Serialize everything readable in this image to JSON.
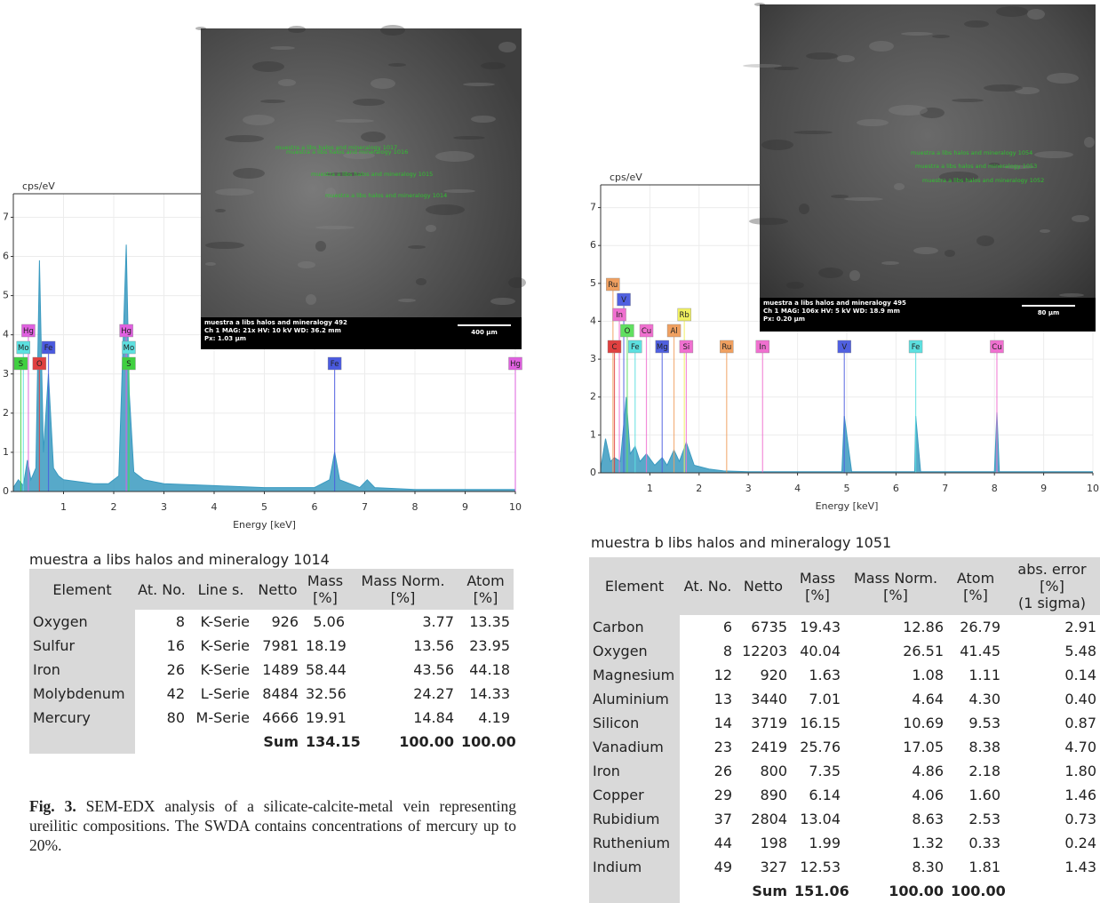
{
  "chart_data": [
    {
      "type": "line",
      "y_label": "cps/eV",
      "x_label": "Energy [keV]",
      "color": "#3a9ac0",
      "grid": true,
      "xlim": [
        0,
        10
      ],
      "ylim": [
        0,
        7.6
      ],
      "xticks": [
        1,
        2,
        3,
        4,
        5,
        6,
        7,
        8,
        9,
        10
      ],
      "yticks": [
        0,
        1,
        2,
        3,
        4,
        5,
        6,
        7
      ],
      "x": [
        0,
        0.1,
        0.2,
        0.28,
        0.35,
        0.45,
        0.52,
        0.6,
        0.7,
        0.8,
        0.9,
        1.0,
        1.3,
        1.6,
        1.9,
        2.1,
        2.25,
        2.31,
        2.4,
        2.6,
        3.0,
        4.0,
        5.0,
        6.0,
        6.3,
        6.4,
        6.5,
        6.9,
        7.05,
        7.2,
        8.0,
        9.0,
        10.0
      ],
      "values": [
        0.1,
        0.3,
        0.15,
        0.8,
        0.3,
        0.6,
        5.9,
        1.0,
        3.0,
        0.6,
        0.4,
        0.3,
        0.25,
        0.2,
        0.2,
        0.4,
        6.3,
        2.5,
        0.5,
        0.3,
        0.2,
        0.15,
        0.1,
        0.1,
        0.3,
        1.0,
        0.3,
        0.1,
        0.3,
        0.1,
        0.05,
        0.05,
        0.05
      ],
      "marker_rows": [
        [
          {
            "label": "Hg",
            "energy": 0.3,
            "color": "#e060e0"
          },
          {
            "label": "Hg",
            "energy": 2.25,
            "color": "#e060e0"
          }
        ],
        [
          {
            "label": "Mo",
            "energy": 0.2,
            "color": "#5ce0e0"
          },
          {
            "label": "Fe",
            "energy": 0.7,
            "color": "#4a5ae0"
          },
          {
            "label": "Mo",
            "energy": 2.3,
            "color": "#5ce0e0"
          }
        ],
        [
          {
            "label": "S",
            "energy": 0.15,
            "color": "#40d040"
          },
          {
            "label": "O",
            "energy": 0.52,
            "color": "#e04040"
          },
          {
            "label": "S",
            "energy": 2.3,
            "color": "#40d040"
          },
          {
            "label": "Fe",
            "energy": 6.4,
            "color": "#4a5ae0"
          },
          {
            "label": "Hg",
            "energy": 10.0,
            "color": "#e060e0"
          }
        ]
      ]
    },
    {
      "type": "line",
      "y_label": "cps/eV",
      "x_label": "Energy [keV]",
      "color": "#3a9ac0",
      "grid": true,
      "xlim": [
        0,
        10
      ],
      "ylim": [
        0,
        7.6
      ],
      "xticks": [
        1,
        2,
        3,
        4,
        5,
        6,
        7,
        8,
        9,
        10
      ],
      "yticks": [
        0,
        1,
        2,
        3,
        4,
        5,
        6,
        7
      ],
      "x": [
        0,
        0.1,
        0.2,
        0.28,
        0.4,
        0.52,
        0.6,
        0.7,
        0.8,
        0.93,
        1.1,
        1.25,
        1.35,
        1.49,
        1.6,
        1.74,
        1.9,
        2.2,
        2.5,
        3.0,
        4.0,
        4.9,
        4.95,
        5.1,
        6.0,
        6.38,
        6.4,
        6.5,
        8.0,
        8.05,
        8.1,
        10.0
      ],
      "values": [
        0.1,
        0.9,
        0.3,
        0.4,
        0.3,
        2.0,
        0.5,
        0.7,
        0.3,
        0.5,
        0.2,
        0.4,
        0.2,
        0.6,
        0.3,
        0.8,
        0.2,
        0.1,
        0.05,
        0.03,
        0.03,
        0.03,
        1.5,
        0.03,
        0.03,
        0.03,
        1.5,
        0.03,
        0.03,
        1.6,
        0.03,
        0.03
      ],
      "marker_rows": [
        [
          {
            "label": "Ru",
            "energy": 0.25,
            "color": "#f0a060"
          }
        ],
        [
          {
            "label": "V",
            "energy": 0.47,
            "color": "#5060e0"
          }
        ],
        [
          {
            "label": "In",
            "energy": 0.38,
            "color": "#f070d0"
          },
          {
            "label": "Rb",
            "energy": 1.7,
            "color": "#f0f060"
          }
        ],
        [
          {
            "label": "O",
            "energy": 0.54,
            "color": "#60e060"
          },
          {
            "label": "Cu",
            "energy": 0.93,
            "color": "#f070d0"
          },
          {
            "label": "Al",
            "energy": 1.49,
            "color": "#f0a060"
          }
        ],
        [
          {
            "label": "C",
            "energy": 0.28,
            "color": "#e04040"
          },
          {
            "label": "Fe",
            "energy": 0.7,
            "color": "#5ce0e0"
          },
          {
            "label": "Mg",
            "energy": 1.25,
            "color": "#5060e0"
          },
          {
            "label": "Si",
            "energy": 1.74,
            "color": "#f070d0"
          },
          {
            "label": "Ru",
            "energy": 2.56,
            "color": "#f0a060"
          },
          {
            "label": "In",
            "energy": 3.29,
            "color": "#f070d0"
          },
          {
            "label": "V",
            "energy": 4.95,
            "color": "#5060e0"
          },
          {
            "label": "Fe",
            "energy": 6.4,
            "color": "#5ce0e0"
          },
          {
            "label": "Cu",
            "energy": 8.05,
            "color": "#f070d0"
          }
        ]
      ]
    }
  ],
  "sem_images": [
    {
      "title": "muestra a libs halos and mineralogy 492",
      "params": "Ch 1   MAG: 21x   HV: 10 kV   WD: 36.2 mm",
      "pixel": "Px: 1.03 µm",
      "scale": "400 µm",
      "labels": [
        "muestra a libs halos and mineralogy 1017",
        "muestra a libs halos and mineralogy 1016",
        "muestra a libs halos and mineralogy 1015",
        "muestra a libs halos and mineralogy 1014"
      ]
    },
    {
      "title": "muestra a libs halos and mineralogy 495",
      "params": "Ch 1   MAG: 106x   HV: 5 kV   WD: 18.9 mm",
      "pixel": "Px: 0.20 µm",
      "scale": "80 µm",
      "labels": [
        "muestra a libs halos and mineralogy 1054",
        "muestra a libs halos and mineralogy 1053",
        "muestra a libs halos and mineralogy 1052"
      ]
    }
  ],
  "tables": [
    {
      "title": "muestra a libs halos and mineralogy 1014",
      "columns": [
        [
          "Element"
        ],
        [
          "At. No."
        ],
        [
          "Line s."
        ],
        [
          "Netto"
        ],
        [
          "Mass",
          "[%]"
        ],
        [
          "Mass Norm.",
          "[%]"
        ],
        [
          "Atom",
          "[%]"
        ]
      ],
      "rows": [
        [
          "Oxygen",
          "8",
          "K-Serie",
          "926",
          "5.06",
          "3.77",
          "13.35"
        ],
        [
          "Sulfur",
          "16",
          "K-Serie",
          "7981",
          "18.19",
          "13.56",
          "23.95"
        ],
        [
          "Iron",
          "26",
          "K-Serie",
          "1489",
          "58.44",
          "43.56",
          "44.18"
        ],
        [
          "Molybdenum",
          "42",
          "L-Serie",
          "8484",
          "32.56",
          "24.27",
          "14.33"
        ],
        [
          "Mercury",
          "80",
          "M-Serie",
          "4666",
          "19.91",
          "14.84",
          "4.19"
        ]
      ],
      "sum": {
        "label": "Sum",
        "mass": "134.15",
        "norm": "100.00",
        "atom": "100.00"
      }
    },
    {
      "title": "muestra b libs halos and mineralogy 1051",
      "columns": [
        [
          "Element"
        ],
        [
          "At. No."
        ],
        [
          "Netto"
        ],
        [
          "Mass",
          "[%]"
        ],
        [
          "Mass Norm.",
          "[%]"
        ],
        [
          "Atom",
          "[%]"
        ],
        [
          "abs. error [%]",
          "(1 sigma)"
        ]
      ],
      "rows": [
        [
          "Carbon",
          "6",
          "6735",
          "19.43",
          "12.86",
          "26.79",
          "2.91"
        ],
        [
          "Oxygen",
          "8",
          "12203",
          "40.04",
          "26.51",
          "41.45",
          "5.48"
        ],
        [
          "Magnesium",
          "12",
          "920",
          "1.63",
          "1.08",
          "1.11",
          "0.14"
        ],
        [
          "Aluminium",
          "13",
          "3440",
          "7.01",
          "4.64",
          "4.30",
          "0.40"
        ],
        [
          "Silicon",
          "14",
          "3719",
          "16.15",
          "10.69",
          "9.53",
          "0.87"
        ],
        [
          "Vanadium",
          "23",
          "2419",
          "25.76",
          "17.05",
          "8.38",
          "4.70"
        ],
        [
          "Iron",
          "26",
          "800",
          "7.35",
          "4.86",
          "2.18",
          "1.80"
        ],
        [
          "Copper",
          "29",
          "890",
          "6.14",
          "4.06",
          "1.60",
          "1.46"
        ],
        [
          "Rubidium",
          "37",
          "2804",
          "13.04",
          "8.63",
          "2.53",
          "0.73"
        ],
        [
          "Ruthenium",
          "44",
          "198",
          "1.99",
          "1.32",
          "0.33",
          "0.24"
        ],
        [
          "Indium",
          "49",
          "327",
          "12.53",
          "8.30",
          "1.81",
          "1.43"
        ]
      ],
      "sum": {
        "label": "Sum",
        "mass": "151.06",
        "norm": "100.00",
        "atom": "100.00"
      }
    }
  ],
  "caption": {
    "label": "Fig. 3.",
    "text": "SEM-EDX analysis of a silicate-calcite-metal vein representing ureilitic compositions. The SWDA contains concentrations of mercury up to 20%."
  }
}
